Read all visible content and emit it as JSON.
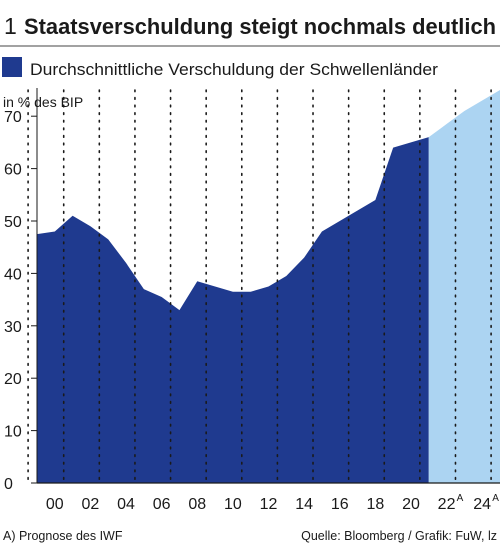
{
  "header": {
    "number": "1",
    "title": "Staatsverschuldung steigt nochmals deutlich"
  },
  "legend": {
    "label": "Durchschnittliche Verschuldung der Schwellenländer"
  },
  "footer": {
    "note": "A) Prognose des IWF",
    "source": "Quelle: Bloomberg / Grafik: FuW, lz"
  },
  "colors": {
    "actual": "#1f3a8f",
    "forecast": "#acd4f2",
    "text": "#1a1a1a"
  },
  "chart_data": {
    "type": "area",
    "title": "Staatsverschuldung steigt nochmals deutlich",
    "ylabel": "in % des BIP",
    "xlabel": "",
    "ylim": [
      0,
      75
    ],
    "xlim": [
      1999,
      2025
    ],
    "yticks": [
      0,
      10,
      20,
      30,
      40,
      50,
      60,
      70
    ],
    "xticks": [
      {
        "x": 2000,
        "label": "00",
        "sup": ""
      },
      {
        "x": 2002,
        "label": "02",
        "sup": ""
      },
      {
        "x": 2004,
        "label": "04",
        "sup": ""
      },
      {
        "x": 2006,
        "label": "06",
        "sup": ""
      },
      {
        "x": 2008,
        "label": "08",
        "sup": ""
      },
      {
        "x": 2010,
        "label": "10",
        "sup": ""
      },
      {
        "x": 2012,
        "label": "12",
        "sup": ""
      },
      {
        "x": 2014,
        "label": "14",
        "sup": ""
      },
      {
        "x": 2016,
        "label": "16",
        "sup": ""
      },
      {
        "x": 2018,
        "label": "18",
        "sup": ""
      },
      {
        "x": 2020,
        "label": "20",
        "sup": ""
      },
      {
        "x": 2022,
        "label": "22",
        "sup": "A"
      },
      {
        "x": 2024,
        "label": "24",
        "sup": "A"
      }
    ],
    "grid": "dotted vertical",
    "series": [
      {
        "name": "Durchschnittliche Verschuldung der Schwellenländer",
        "kind": "actual",
        "x": [
          1999,
          2000,
          2001,
          2002,
          2003,
          2004,
          2005,
          2006,
          2007,
          2008,
          2009,
          2010,
          2011,
          2012,
          2013,
          2014,
          2015,
          2016,
          2017,
          2018,
          2019,
          2020,
          2021
        ],
        "values": [
          47.5,
          48,
          51,
          49,
          46.5,
          42,
          37,
          35.5,
          33,
          38.5,
          37.5,
          36.5,
          36.5,
          37.5,
          39.5,
          43,
          48,
          50,
          52,
          54,
          64,
          65,
          66
        ]
      },
      {
        "name": "Prognose",
        "kind": "forecast",
        "x": [
          2021,
          2022,
          2023,
          2024,
          2025
        ],
        "values": [
          66,
          68.5,
          71,
          73,
          75
        ]
      }
    ]
  }
}
